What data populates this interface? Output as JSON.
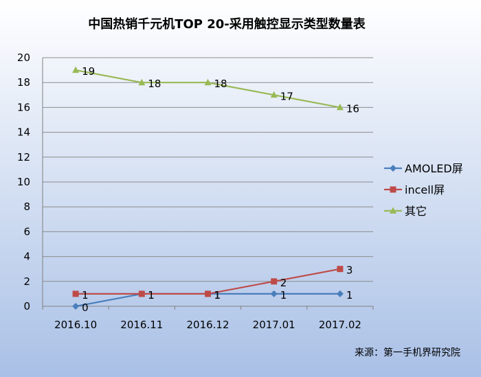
{
  "chart_data": {
    "type": "line",
    "title": "中国热销千元机TOP 20-采用触控显示类型数量表",
    "categories": [
      "2016.10",
      "2016.11",
      "2016.12",
      "2017.01",
      "2017.02"
    ],
    "ylim": [
      0,
      20
    ],
    "yticks": [
      "0",
      "2",
      "4",
      "6",
      "8",
      "10",
      "12",
      "14",
      "16",
      "18",
      "20"
    ],
    "grid": true,
    "legend_position": "right",
    "series": [
      {
        "name": "AMOLED屏",
        "marker": "diamond",
        "color": "#4A7EBB",
        "values": [
          0,
          1,
          1,
          1,
          1
        ],
        "labels": [
          "0",
          "1",
          "1",
          "1",
          "1"
        ]
      },
      {
        "name": "incell屏",
        "marker": "square",
        "color": "#BE4B48",
        "values": [
          1,
          1,
          1,
          2,
          3
        ],
        "labels": [
          "1",
          "1",
          "1",
          "2",
          "3"
        ]
      },
      {
        "name": "其它",
        "marker": "triangle",
        "color": "#98B954",
        "values": [
          19,
          18,
          18,
          17,
          16
        ],
        "labels": [
          "19",
          "18",
          "18",
          "17",
          "16"
        ]
      }
    ],
    "source": "来源：第一手机界研究院"
  },
  "colors": {
    "background_top": "#FFFFFF",
    "background_bottom": "#A9C0E6",
    "gridline": "#8C8C8C",
    "axis": "#7F7F7F"
  }
}
